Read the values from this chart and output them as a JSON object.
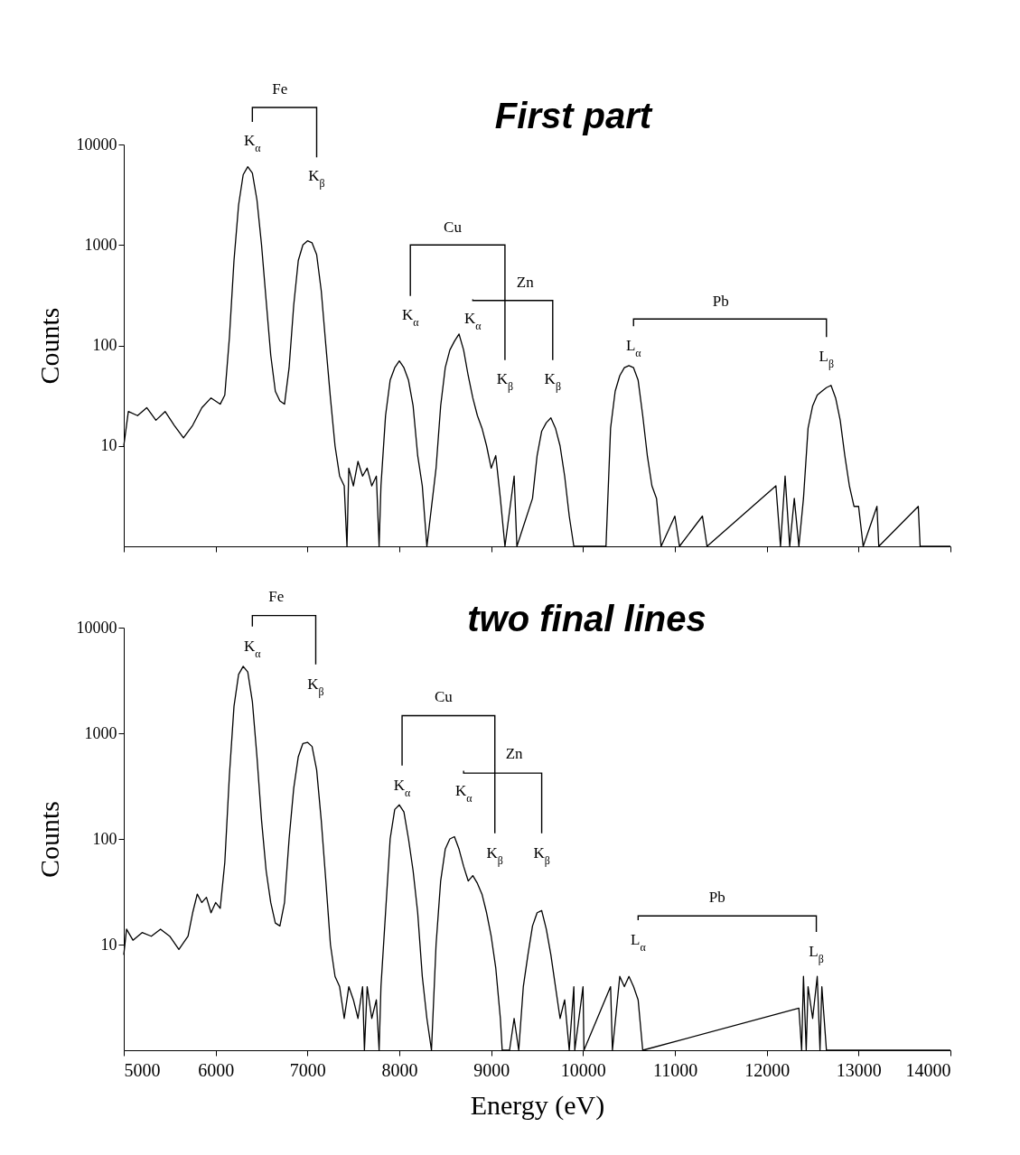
{
  "chart_data": [
    {
      "type": "line",
      "title": "First part",
      "ylabel": "Counts",
      "log": "y",
      "tick_labels": "y",
      "xlim": [
        5000,
        14000
      ],
      "xticks": [
        {
          "value": 5000,
          "label": null
        },
        {
          "value": 6000,
          "label": null
        },
        {
          "value": 7000,
          "label": null
        },
        {
          "value": 8000,
          "label": null
        },
        {
          "value": 9000,
          "label": null
        },
        {
          "value": 10000,
          "label": null
        },
        {
          "value": 11000,
          "label": null
        },
        {
          "value": 12000,
          "label": null
        },
        {
          "value": 13000,
          "label": null
        },
        {
          "value": 14000,
          "label": null
        }
      ],
      "ylim": [
        1,
        10000
      ],
      "yticks": [
        10,
        100,
        1000,
        10000
      ],
      "x": [
        5000,
        5050,
        5150,
        5250,
        5350,
        5450,
        5550,
        5650,
        5750,
        5850,
        5950,
        6050,
        6100,
        6150,
        6200,
        6250,
        6300,
        6350,
        6400,
        6450,
        6500,
        6550,
        6600,
        6650,
        6700,
        6750,
        6800,
        6850,
        6900,
        6950,
        7000,
        7050,
        7100,
        7150,
        7200,
        7250,
        7300,
        7350,
        7400,
        7430,
        7450,
        7500,
        7550,
        7600,
        7650,
        7700,
        7750,
        7780,
        7800,
        7850,
        7900,
        7950,
        8000,
        8050,
        8100,
        8150,
        8200,
        8250,
        8300,
        8400,
        8450,
        8500,
        8550,
        8600,
        8650,
        8700,
        8750,
        8800,
        8850,
        8900,
        8950,
        9000,
        9050,
        9100,
        9150,
        9250,
        9280,
        9450,
        9500,
        9550,
        9600,
        9650,
        9700,
        9750,
        9800,
        9850,
        9900,
        10250,
        10300,
        10350,
        10400,
        10450,
        10500,
        10550,
        10600,
        10650,
        10700,
        10750,
        10800,
        10850,
        11000,
        11050,
        11300,
        11350,
        12100,
        12150,
        12200,
        12250,
        12300,
        12350,
        12400,
        12450,
        12500,
        12550,
        12600,
        12650,
        12700,
        12750,
        12800,
        12850,
        12900,
        12950,
        13000,
        13050,
        13200,
        13220,
        13650,
        13670,
        14000
      ],
      "series": [
        {
          "color": "#000000",
          "values": [
            10,
            22,
            20,
            24,
            18,
            22,
            16,
            12,
            16,
            24,
            30,
            26,
            32,
            120,
            700,
            2500,
            5000,
            6000,
            5200,
            2800,
            1000,
            280,
            80,
            35,
            28,
            26,
            60,
            250,
            700,
            1000,
            1100,
            1050,
            800,
            350,
            100,
            30,
            10,
            5,
            4,
            1,
            6,
            4,
            7,
            5,
            6,
            4,
            5,
            1,
            4,
            20,
            45,
            60,
            70,
            60,
            45,
            25,
            8,
            4,
            1,
            6,
            25,
            60,
            90,
            110,
            130,
            90,
            50,
            30,
            20,
            15,
            10,
            6,
            8,
            3,
            1,
            5,
            1,
            3,
            8,
            14,
            17,
            19,
            15,
            10,
            5,
            2,
            1,
            1,
            15,
            35,
            50,
            60,
            63,
            60,
            45,
            20,
            8,
            4,
            3,
            1,
            2,
            1,
            2,
            1,
            4,
            1,
            5,
            1,
            3,
            1,
            3,
            15,
            25,
            32,
            35,
            38,
            40,
            30,
            18,
            8,
            4,
            2.5,
            2.5,
            1,
            2.5,
            1,
            2.5,
            1,
            1
          ]
        }
      ],
      "annotations": [
        "Fe",
        "K$_{α}$",
        "K$_{β}$",
        "Cu",
        "K$_{α}$",
        "K$_{β}$",
        "Zn",
        "K$_{α}$",
        "K$_{β}$",
        "Pb",
        "L$_{α}$",
        "L$_{β}$"
      ]
    },
    {
      "type": "line",
      "title": "two final lines",
      "xlabel": "Energy (eV)",
      "ylabel": "Counts",
      "log": "y",
      "xlim": [
        5000,
        14000
      ],
      "xticks": [
        5000,
        6000,
        7000,
        8000,
        9000,
        10000,
        11000,
        12000,
        13000,
        14000
      ],
      "ylim": [
        1,
        10000
      ],
      "yticks": [
        10,
        100,
        1000,
        10000
      ],
      "x": [
        5000,
        5030,
        5100,
        5200,
        5300,
        5400,
        5500,
        5600,
        5700,
        5750,
        5800,
        5850,
        5900,
        5950,
        6000,
        6050,
        6100,
        6150,
        6200,
        6250,
        6300,
        6350,
        6400,
        6450,
        6500,
        6550,
        6600,
        6650,
        6700,
        6750,
        6800,
        6850,
        6900,
        6950,
        7000,
        7050,
        7100,
        7150,
        7200,
        7250,
        7300,
        7350,
        7400,
        7450,
        7500,
        7550,
        7600,
        7620,
        7650,
        7700,
        7750,
        7780,
        7800,
        7850,
        7900,
        7950,
        8000,
        8050,
        8100,
        8150,
        8200,
        8250,
        8300,
        8350,
        8400,
        8450,
        8500,
        8550,
        8600,
        8650,
        8700,
        8750,
        8800,
        8850,
        8900,
        8950,
        9000,
        9050,
        9100,
        9120,
        9200,
        9250,
        9300,
        9350,
        9400,
        9450,
        9500,
        9550,
        9600,
        9650,
        9700,
        9750,
        9800,
        9850,
        9900,
        9910,
        10000,
        10010,
        10300,
        10320,
        10400,
        10450,
        10500,
        10550,
        10600,
        10650,
        12350,
        12380,
        12400,
        12430,
        12450,
        12500,
        12550,
        12580,
        12600,
        12650,
        12700,
        14000
      ],
      "series": [
        {
          "color": "#000000",
          "values": [
            8,
            14,
            11,
            13,
            12,
            14,
            12,
            9,
            12,
            20,
            30,
            25,
            28,
            20,
            25,
            22,
            60,
            400,
            1800,
            3600,
            4300,
            3800,
            2000,
            600,
            150,
            50,
            25,
            16,
            15,
            25,
            100,
            300,
            600,
            800,
            820,
            750,
            450,
            150,
            40,
            10,
            5,
            4,
            2,
            4,
            3,
            2,
            4,
            1,
            4,
            2,
            3,
            1,
            4,
            20,
            100,
            190,
            210,
            180,
            100,
            50,
            20,
            5,
            2,
            1,
            10,
            40,
            80,
            100,
            105,
            80,
            55,
            40,
            45,
            38,
            30,
            20,
            12,
            6,
            2,
            1,
            1,
            2,
            1,
            4,
            8,
            15,
            20,
            21,
            14,
            8,
            4,
            2,
            3,
            1,
            4,
            1,
            4,
            1,
            4,
            1,
            5,
            4,
            5,
            4,
            3,
            1,
            2.5,
            1,
            5,
            1,
            4,
            2,
            5,
            1,
            4,
            1,
            1,
            1
          ]
        }
      ],
      "annotations": [
        "Fe",
        "K$_{α}$",
        "K$_{β}$",
        "Cu",
        "K$_{α}$",
        "K$_{β}$",
        "Zn",
        "K$_{α}$",
        "K$_{β}$",
        "Pb",
        "L$_{α}$",
        "L$_{β}$"
      ]
    }
  ]
}
